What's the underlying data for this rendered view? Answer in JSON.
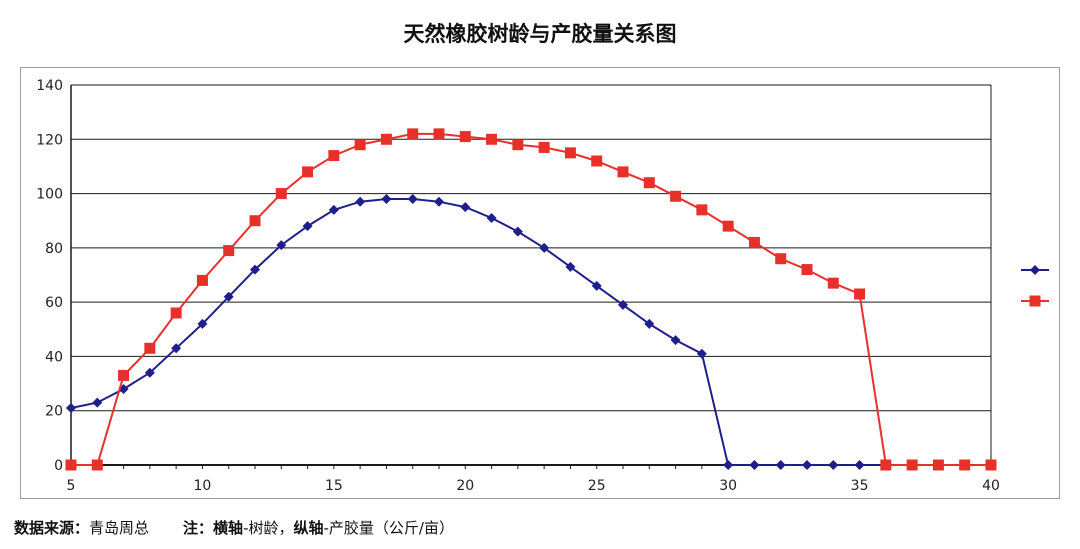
{
  "chart_data": {
    "type": "line",
    "title": "天然橡胶树龄与产胶量关系图",
    "xlabel": "",
    "ylabel": "",
    "xlim": [
      5,
      40
    ],
    "ylim": [
      0,
      140
    ],
    "x_ticks": [
      "5",
      "10",
      "15",
      "20",
      "25",
      "30",
      "35",
      "40"
    ],
    "y_ticks": [
      "0",
      "20",
      "40",
      "60",
      "80",
      "100",
      "120",
      "140"
    ],
    "grid": "horizontal",
    "legend_position": "right",
    "series": [
      {
        "marker": "diamond",
        "color": "#1f1f8c",
        "x": [
          5,
          6,
          7,
          8,
          9,
          10,
          11,
          12,
          13,
          14,
          15,
          16,
          17,
          18,
          19,
          20,
          21,
          22,
          23,
          24,
          25,
          26,
          27,
          28,
          29,
          30,
          31,
          32,
          33,
          34,
          35,
          36
        ],
        "values": [
          21,
          23,
          28,
          34,
          43,
          52,
          62,
          72,
          81,
          88,
          94,
          97,
          98,
          98,
          97,
          95,
          91,
          86,
          80,
          73,
          66,
          59,
          52,
          46,
          41,
          0,
          0,
          0,
          0,
          0,
          0,
          0
        ]
      },
      {
        "marker": "square",
        "color": "#e8302b",
        "x": [
          5,
          6,
          7,
          8,
          9,
          10,
          11,
          12,
          13,
          14,
          15,
          16,
          17,
          18,
          19,
          20,
          21,
          22,
          23,
          24,
          25,
          26,
          27,
          28,
          29,
          30,
          31,
          32,
          33,
          34,
          35,
          36,
          37,
          38,
          39,
          40
        ],
        "values": [
          0,
          0,
          33,
          43,
          56,
          68,
          79,
          90,
          100,
          108,
          114,
          118,
          120,
          122,
          122,
          121,
          120,
          118,
          117,
          115,
          112,
          108,
          104,
          99,
          94,
          88,
          82,
          76,
          72,
          67,
          63,
          0,
          0,
          0,
          0,
          0
        ]
      }
    ]
  },
  "footer": {
    "source_label": "数据来源：",
    "source_value": "青岛周总",
    "note_label": "注：",
    "x_axis_label": "横轴",
    "x_axis_desc": "-树龄，",
    "y_axis_label": "纵轴",
    "y_axis_desc": "-产胶量（公斤/亩）"
  }
}
